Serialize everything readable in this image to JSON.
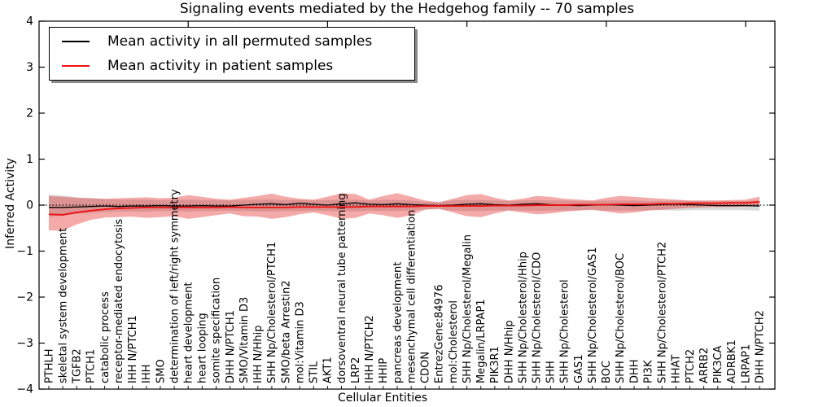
{
  "chart_data": {
    "type": "line",
    "title": "Signaling events mediated by the Hedgehog family -- 70 samples",
    "xlabel": "Cellular Entities",
    "ylabel": "Inferred Activity",
    "ylim": [
      -4,
      4
    ],
    "yticks": [
      4,
      3,
      2,
      1,
      0,
      -1,
      -2,
      -3,
      -4
    ],
    "grid": false,
    "legend_position": "upper left",
    "zero_line": true,
    "top_tick_indices": [
      10,
      20,
      30,
      40,
      50
    ],
    "categories": [
      "PTHLH",
      "skeletal system development",
      "TGFB2",
      "PTCH1",
      "catabolic process",
      "receptor-mediated endocytosis",
      "IHH N/PTCH1",
      "IHH",
      "SMO",
      "determination of left/right symmetry",
      "heart development",
      "heart looping",
      "somite specification",
      "DHH N/PTCH1",
      "SMO/Vitamin D3",
      "IHH N/Hhip",
      "SHH Np/Cholesterol/PTCH1",
      "SMO/beta Arrestin2",
      "mol:Vitamin D3",
      "STIL",
      "AKT1",
      "dorsoventral neural tube patterning",
      "LRP2",
      "IHH N/PTCH2",
      "HHIP",
      "pancreas development",
      "mesenchymal cell differentiation",
      "CDON",
      "EntrezGene:84976",
      "mol:Cholesterol",
      "SHH Np/Cholesterol/Megalin",
      "Megalin/LRPAP1",
      "PIK3R1",
      "DHH N/Hhip",
      "SHH Np/Cholesterol/Hhip",
      "SHH Np/Cholesterol/CDO",
      "SHH",
      "SHH Np/Cholesterol",
      "GAS1",
      "SHH Np/Cholesterol/GAS1",
      "BOC",
      "SHH Np/Cholesterol/BOC",
      "DHH",
      "PI3K",
      "SHH Np/Cholesterol/PTCH2",
      "HHAT",
      "PTCH2",
      "ARRB2",
      "PIK3CA",
      "ADRBK1",
      "LRPAP1",
      "DHH N/PTCH2"
    ],
    "series": [
      {
        "name": "Mean activity in all permuted samples",
        "color": "#000000",
        "values": [
          -0.05,
          -0.05,
          -0.04,
          -0.03,
          -0.02,
          -0.03,
          -0.02,
          -0.02,
          -0.01,
          -0.02,
          -0.02,
          -0.01,
          -0.02,
          -0.02,
          0.0,
          0.02,
          0.03,
          0.01,
          0.04,
          0.02,
          0.0,
          0.03,
          0.05,
          0.02,
          0.01,
          0.03,
          0.01,
          0.0,
          -0.01,
          0.0,
          0.02,
          0.03,
          0.01,
          0.0,
          0.02,
          0.03,
          0.01,
          0.0,
          -0.01,
          0.0,
          0.01,
          0.0,
          -0.01,
          0.0,
          0.01,
          0.02,
          0.01,
          0.0,
          -0.01,
          -0.01,
          -0.01,
          -0.02
        ]
      },
      {
        "name": "Mean activity in patient samples",
        "color": "#ee1111",
        "values": [
          -0.2,
          -0.21,
          -0.16,
          -0.12,
          -0.09,
          -0.07,
          -0.06,
          -0.05,
          -0.05,
          -0.05,
          -0.05,
          -0.05,
          -0.05,
          -0.04,
          -0.05,
          -0.05,
          -0.05,
          -0.05,
          -0.04,
          -0.04,
          -0.04,
          -0.04,
          -0.04,
          -0.03,
          -0.03,
          -0.03,
          -0.03,
          -0.02,
          -0.02,
          -0.02,
          -0.02,
          -0.02,
          -0.01,
          -0.01,
          -0.01,
          0.0,
          0.0,
          0.0,
          0.01,
          0.01,
          0.01,
          0.02,
          0.02,
          0.02,
          0.03,
          0.03,
          0.04,
          0.04,
          0.04,
          0.05,
          0.05,
          0.07
        ]
      }
    ],
    "bands": [
      {
        "name": "permuted samples std band",
        "color": "#8c8c8c",
        "opacity": 0.32,
        "low": [
          -0.25,
          -0.23,
          -0.19,
          -0.17,
          -0.15,
          -0.14,
          -0.14,
          -0.14,
          -0.13,
          -0.13,
          -0.14,
          -0.13,
          -0.13,
          -0.12,
          -0.13,
          -0.14,
          -0.14,
          -0.13,
          -0.13,
          -0.12,
          -0.13,
          -0.14,
          -0.14,
          -0.12,
          -0.13,
          -0.13,
          -0.12,
          -0.09,
          -0.09,
          -0.12,
          -0.13,
          -0.13,
          -0.12,
          -0.11,
          -0.12,
          -0.13,
          -0.12,
          -0.12,
          -0.11,
          -0.11,
          -0.12,
          -0.12,
          -0.12,
          -0.11,
          -0.11,
          -0.12,
          -0.11,
          -0.11,
          -0.11,
          -0.11,
          -0.11,
          -0.12
        ],
        "high": [
          0.23,
          0.21,
          0.17,
          0.15,
          0.13,
          0.12,
          0.12,
          0.12,
          0.11,
          0.11,
          0.12,
          0.11,
          0.11,
          0.1,
          0.11,
          0.12,
          0.12,
          0.11,
          0.11,
          0.1,
          0.11,
          0.12,
          0.12,
          0.1,
          0.11,
          0.11,
          0.1,
          0.07,
          0.07,
          0.1,
          0.11,
          0.11,
          0.1,
          0.09,
          0.1,
          0.11,
          0.1,
          0.1,
          0.09,
          0.09,
          0.1,
          0.1,
          0.1,
          0.09,
          0.09,
          0.1,
          0.09,
          0.09,
          0.09,
          0.09,
          0.09,
          0.1
        ]
      },
      {
        "name": "patient samples std band",
        "color": "#e62020",
        "opacity": 0.38,
        "low": [
          -0.55,
          -0.55,
          -0.42,
          -0.32,
          -0.27,
          -0.26,
          -0.25,
          -0.28,
          -0.26,
          -0.24,
          -0.3,
          -0.26,
          -0.22,
          -0.18,
          -0.24,
          -0.25,
          -0.3,
          -0.26,
          -0.2,
          -0.16,
          -0.22,
          -0.3,
          -0.28,
          -0.18,
          -0.22,
          -0.28,
          -0.22,
          -0.1,
          -0.08,
          -0.16,
          -0.24,
          -0.26,
          -0.18,
          -0.12,
          -0.16,
          -0.2,
          -0.18,
          -0.14,
          -0.12,
          -0.1,
          -0.14,
          -0.18,
          -0.16,
          -0.12,
          -0.1,
          -0.08,
          -0.06,
          -0.05,
          -0.04,
          -0.04,
          -0.03,
          -0.02
        ],
        "high": [
          0.2,
          0.18,
          0.16,
          0.15,
          0.14,
          0.15,
          0.16,
          0.17,
          0.15,
          0.16,
          0.22,
          0.18,
          0.14,
          0.12,
          0.16,
          0.2,
          0.25,
          0.18,
          0.14,
          0.12,
          0.18,
          0.26,
          0.24,
          0.12,
          0.2,
          0.26,
          0.18,
          0.1,
          0.06,
          0.14,
          0.22,
          0.24,
          0.16,
          0.1,
          0.14,
          0.2,
          0.18,
          0.14,
          0.12,
          0.1,
          0.16,
          0.2,
          0.18,
          0.16,
          0.14,
          0.12,
          0.1,
          0.1,
          0.1,
          0.11,
          0.12,
          0.18
        ]
      }
    ]
  }
}
